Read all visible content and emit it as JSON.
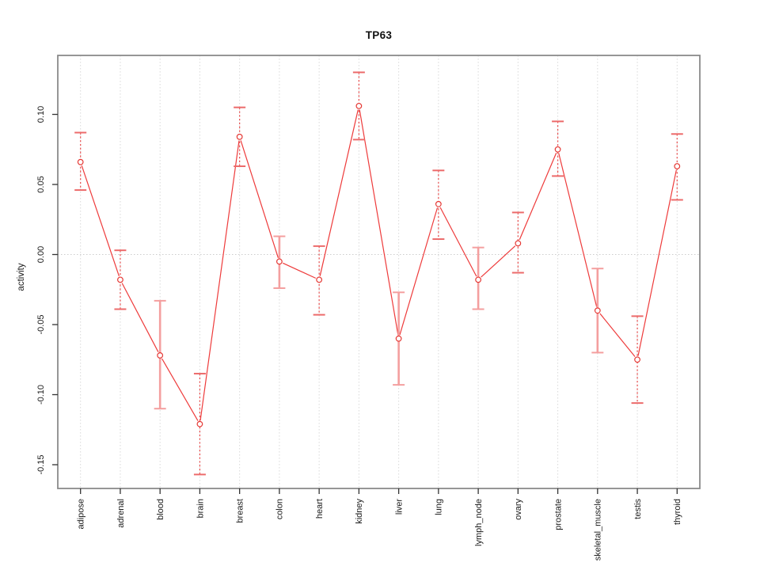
{
  "figure": {
    "title": "TP63",
    "ylabel": "activity"
  },
  "chart_data": {
    "type": "line",
    "title": "TP63",
    "xlabel": "",
    "ylabel": "activity",
    "categories": [
      "adipose",
      "adrenal",
      "blood",
      "brain",
      "breast",
      "colon",
      "heart",
      "kidney",
      "liver",
      "lung",
      "lymph_node",
      "ovary",
      "prostate",
      "skeletal_muscle",
      "testis",
      "thyroid"
    ],
    "series": [
      {
        "name": "activity",
        "values": [
          0.066,
          -0.018,
          -0.072,
          -0.121,
          0.084,
          -0.005,
          -0.018,
          0.106,
          -0.06,
          0.036,
          -0.018,
          0.008,
          0.075,
          -0.04,
          -0.075,
          0.063
        ],
        "error_low": [
          0.046,
          -0.039,
          -0.11,
          -0.157,
          0.063,
          -0.024,
          -0.043,
          0.082,
          -0.093,
          0.011,
          -0.039,
          -0.013,
          0.056,
          -0.07,
          -0.106,
          0.039
        ],
        "error_high": [
          0.087,
          0.003,
          -0.033,
          -0.085,
          0.105,
          0.013,
          0.006,
          0.13,
          -0.027,
          0.06,
          0.005,
          0.03,
          0.095,
          -0.01,
          -0.044,
          0.086
        ]
      }
    ],
    "error_bar_styles": [
      "dashed",
      "dashed",
      "solid",
      "dashed",
      "dashed",
      "solid",
      "dashed",
      "dashed",
      "solid",
      "dashed",
      "solid",
      "dashed",
      "dashed",
      "solid",
      "dashed",
      "dashed"
    ],
    "ytick_labels": [
      "0.10",
      "0.05",
      "0.00",
      "-0.05",
      "-0.10",
      "-0.15"
    ],
    "ytick_values": [
      0.1,
      0.05,
      0.0,
      -0.05,
      -0.1,
      -0.15
    ],
    "ylim": [
      -0.167,
      0.142
    ],
    "grid": "vertical dotted line at each category; horizontal dotted line at 0",
    "legend": "none",
    "marker": "open-circle",
    "colors": {
      "line": "#ee3b3b",
      "marker": "#e53935",
      "error_dashed": "#e84d4d",
      "error_cap": "#ec6b6b",
      "error_solid": "#f49f9f",
      "grid": "#d9d9d9",
      "zero_line": "#cccccc",
      "box": "#8a8a8a",
      "tick": "#333333",
      "text": "#1a1a1a"
    }
  }
}
